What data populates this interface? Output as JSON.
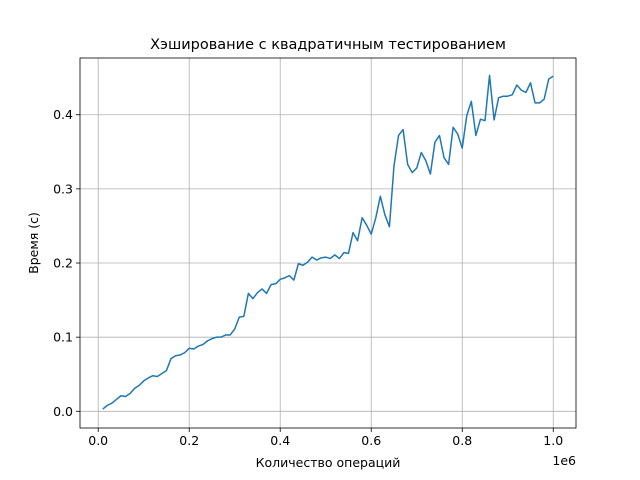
{
  "chart_data": {
    "type": "line",
    "title": "Хэширование с квадратичным тестированием",
    "xlabel": "Количество операций",
    "ylabel": "Время (с)",
    "x_offset_label": "1e6",
    "xlim": [
      -40000,
      1050000
    ],
    "ylim": [
      -0.0225,
      0.4765
    ],
    "grid": true,
    "line_color": "#1f77b4",
    "x_ticks": [
      0,
      200000,
      400000,
      600000,
      800000,
      1000000
    ],
    "x_tick_labels": [
      "0.0",
      "0.2",
      "0.4",
      "0.6",
      "0.8",
      "1.0"
    ],
    "y_ticks": [
      0,
      0.1,
      0.2,
      0.3,
      0.4
    ],
    "y_tick_labels": [
      "0.0",
      "0.1",
      "0.2",
      "0.3",
      "0.4"
    ],
    "series": [
      {
        "x_start": 10000,
        "x_step": 10000,
        "values": [
          0.003,
          0.008,
          0.011,
          0.016,
          0.021,
          0.02,
          0.024,
          0.031,
          0.035,
          0.041,
          0.045,
          0.048,
          0.047,
          0.051,
          0.055,
          0.071,
          0.075,
          0.076,
          0.079,
          0.085,
          0.084,
          0.088,
          0.09,
          0.095,
          0.098,
          0.1,
          0.1,
          0.103,
          0.103,
          0.111,
          0.127,
          0.128,
          0.159,
          0.152,
          0.16,
          0.165,
          0.159,
          0.171,
          0.172,
          0.178,
          0.18,
          0.183,
          0.177,
          0.199,
          0.197,
          0.201,
          0.208,
          0.204,
          0.207,
          0.208,
          0.206,
          0.211,
          0.206,
          0.214,
          0.213,
          0.241,
          0.23,
          0.261,
          0.251,
          0.239,
          0.261,
          0.29,
          0.265,
          0.249,
          0.331,
          0.372,
          0.38,
          0.333,
          0.322,
          0.328,
          0.349,
          0.338,
          0.32,
          0.363,
          0.372,
          0.342,
          0.333,
          0.383,
          0.374,
          0.355,
          0.399,
          0.418,
          0.372,
          0.394,
          0.392,
          0.453,
          0.393,
          0.423,
          0.425,
          0.425,
          0.427,
          0.44,
          0.433,
          0.43,
          0.443,
          0.416,
          0.416,
          0.421,
          0.448,
          0.452
        ]
      }
    ]
  }
}
